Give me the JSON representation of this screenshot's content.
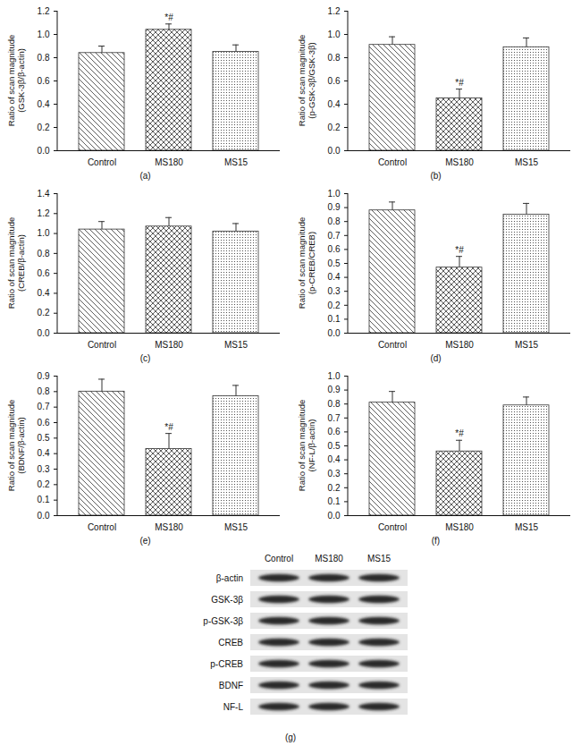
{
  "chart_data": [
    {
      "type": "bar",
      "caption": "(a)",
      "y_label": "Ratio of scan magnitude\n(GSK-3β/β-actin)",
      "categories": [
        "Control",
        "MS180",
        "MS15"
      ],
      "values": [
        0.84,
        1.04,
        0.85
      ],
      "errors": [
        0.06,
        0.05,
        0.06
      ],
      "color": "#333333",
      "ylim": [
        0,
        1.2
      ],
      "yticks": [
        0,
        0.2,
        0.4,
        0.6,
        0.8,
        1,
        1.2
      ],
      "annotations": [
        {
          "category": "MS180",
          "text": "*#"
        }
      ]
    },
    {
      "type": "bar",
      "caption": "(b)",
      "y_label": "Ratio of scan magnitude\n(p-GSK-3β/GSK-3β)",
      "categories": [
        "Control",
        "MS180",
        "MS15"
      ],
      "values": [
        0.91,
        0.45,
        0.89
      ],
      "errors": [
        0.07,
        0.08,
        0.08
      ],
      "color": "#333333",
      "ylim": [
        0,
        1.2
      ],
      "yticks": [
        0,
        0.2,
        0.4,
        0.6,
        0.8,
        1,
        1.2
      ],
      "annotations": [
        {
          "category": "MS180",
          "text": "*#"
        }
      ]
    },
    {
      "type": "bar",
      "caption": "(c)",
      "y_label": "Ratio of scan magnitude\n(CREB/β-actin)",
      "categories": [
        "Control",
        "MS180",
        "MS15"
      ],
      "values": [
        1.04,
        1.07,
        1.02
      ],
      "errors": [
        0.08,
        0.09,
        0.08
      ],
      "color": "#333333",
      "ylim": [
        0,
        1.4
      ],
      "yticks": [
        0,
        0.2,
        0.4,
        0.6,
        0.8,
        1,
        1.2,
        1.4
      ],
      "annotations": []
    },
    {
      "type": "bar",
      "caption": "(d)",
      "y_label": "Ratio of scan magnitude\n(p-CREB/CREB)",
      "categories": [
        "Control",
        "MS180",
        "MS15"
      ],
      "values": [
        0.88,
        0.47,
        0.85
      ],
      "errors": [
        0.06,
        0.08,
        0.08
      ],
      "color": "#333333",
      "ylim": [
        0,
        1
      ],
      "yticks": [
        0,
        0.1,
        0.2,
        0.3,
        0.4,
        0.5,
        0.6,
        0.7,
        0.8,
        0.9,
        1
      ],
      "annotations": [
        {
          "category": "MS180",
          "text": "*#"
        }
      ]
    },
    {
      "type": "bar",
      "caption": "(e)",
      "y_label": "Ratio of scan magnitude\n(BDNF/β-actin)",
      "categories": [
        "Control",
        "MS180",
        "MS15"
      ],
      "values": [
        0.8,
        0.43,
        0.77
      ],
      "errors": [
        0.08,
        0.1,
        0.07
      ],
      "color": "#333333",
      "ylim": [
        0,
        0.9
      ],
      "yticks": [
        0,
        0.1,
        0.2,
        0.3,
        0.4,
        0.5,
        0.6,
        0.7,
        0.8,
        0.9
      ],
      "annotations": [
        {
          "category": "MS180",
          "text": "*#"
        }
      ]
    },
    {
      "type": "bar",
      "caption": "(f)",
      "y_label": "Ratio of scan magnitude\n(NF-L/β-actin)",
      "categories": [
        "Control",
        "MS180",
        "MS15"
      ],
      "values": [
        0.81,
        0.46,
        0.79
      ],
      "errors": [
        0.08,
        0.08,
        0.06
      ],
      "color": "#333333",
      "ylim": [
        0,
        1
      ],
      "yticks": [
        0,
        0.1,
        0.2,
        0.3,
        0.4,
        0.5,
        0.6,
        0.7,
        0.8,
        0.9,
        1
      ],
      "annotations": [
        {
          "category": "MS180",
          "text": "*#"
        }
      ]
    }
  ],
  "blot": {
    "lanes": [
      "Control",
      "MS180",
      "MS15"
    ],
    "bands": [
      "β-actin",
      "GSK-3β",
      "p-GSK-3β",
      "CREB",
      "p-CREB",
      "BDNF",
      "NF-L"
    ],
    "caption": "(g)"
  }
}
